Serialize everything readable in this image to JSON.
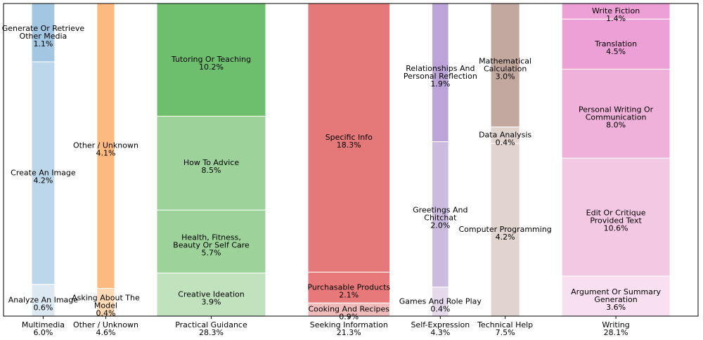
{
  "chart_data": {
    "type": "marimekko",
    "categories": [
      {
        "name": "Multimedia",
        "value": 6.0,
        "value_label": "6.0%",
        "segments": [
          {
            "name": "Analyze An Image",
            "value": 0.6,
            "value_label": "0.6%",
            "color": "#dce9f3"
          },
          {
            "name": "Create An Image",
            "value": 4.2,
            "value_label": "4.2%",
            "color": "#bcd7ea"
          },
          {
            "name": "Generate Or Retrieve\nOther Media",
            "value": 1.1,
            "value_label": "1.1%",
            "color": "#a3c7e2"
          }
        ]
      },
      {
        "name": "Other / Unknown",
        "value": 4.6,
        "value_label": "4.6%",
        "segments": [
          {
            "name": "Asking About The\nModel",
            "value": 0.4,
            "value_label": "0.4%",
            "color": "#fdd9b5"
          },
          {
            "name": "Other / Unknown",
            "value": 4.1,
            "value_label": "4.1%",
            "color": "#fdba7e"
          }
        ]
      },
      {
        "name": "Practical Guidance",
        "value": 28.3,
        "value_label": "28.3%",
        "segments": [
          {
            "name": "Creative Ideation",
            "value": 3.9,
            "value_label": "3.9%",
            "color": "#c0e2bd"
          },
          {
            "name": "Health, Fitness,\nBeauty Or Self Care",
            "value": 5.7,
            "value_label": "5.7%",
            "color": "#9dd39a"
          },
          {
            "name": "How To Advice",
            "value": 8.5,
            "value_label": "8.5%",
            "color": "#9dd39a"
          },
          {
            "name": "Tutoring Or Teaching",
            "value": 10.2,
            "value_label": "10.2%",
            "color": "#6dbf6e"
          }
        ]
      },
      {
        "name": "Seeking Information",
        "value": 21.3,
        "value_label": "21.3%",
        "segments": [
          {
            "name": "Cooking And Recipes",
            "value": 0.9,
            "value_label": "0.9%",
            "color": "#f0bdbc"
          },
          {
            "name": "Purchasable Products",
            "value": 2.1,
            "value_label": "2.1%",
            "color": "#e8797a"
          },
          {
            "name": "Specific Info",
            "value": 18.3,
            "value_label": "18.3%",
            "color": "#e57878"
          }
        ]
      },
      {
        "name": "Self-Expression",
        "value": 4.3,
        "value_label": "4.3%",
        "segments": [
          {
            "name": "Games And Role Play",
            "value": 0.4,
            "value_label": "0.4%",
            "color": "#e5d9ec"
          },
          {
            "name": "Greetings And\nChitchat",
            "value": 2.0,
            "value_label": "2.0%",
            "color": "#cbbbdf"
          },
          {
            "name": "Relationships And\nPersonal Reflection",
            "value": 1.9,
            "value_label": "1.9%",
            "color": "#bca3d8"
          }
        ]
      },
      {
        "name": "Technical Help",
        "value": 7.5,
        "value_label": "7.5%",
        "segments": [
          {
            "name": "Computer Programming",
            "value": 4.2,
            "value_label": "4.2%",
            "color": "#e1d4ce"
          },
          {
            "name": "Data Analysis",
            "value": 0.4,
            "value_label": "0.4%",
            "color": "#e1d4ce"
          },
          {
            "name": "Mathematical\nCalculation",
            "value": 3.0,
            "value_label": "3.0%",
            "color": "#c3a89f"
          }
        ]
      },
      {
        "name": "Writing",
        "value": 28.1,
        "value_label": "28.1%",
        "segments": [
          {
            "name": "Argument Or Summary\nGeneration",
            "value": 3.6,
            "value_label": "3.6%",
            "color": "#f8e0f0"
          },
          {
            "name": "Edit Or Critique\nProvided Text",
            "value": 10.6,
            "value_label": "10.6%",
            "color": "#f3c8e3"
          },
          {
            "name": "Personal Writing Or\nCommunication",
            "value": 8.0,
            "value_label": "8.0%",
            "color": "#efb1d9"
          },
          {
            "name": "Translation",
            "value": 4.5,
            "value_label": "4.5%",
            "color": "#eca0d5"
          },
          {
            "name": "Write Fiction",
            "value": 1.4,
            "value_label": "1.4%",
            "color": "#eca0d5"
          }
        ]
      }
    ]
  }
}
